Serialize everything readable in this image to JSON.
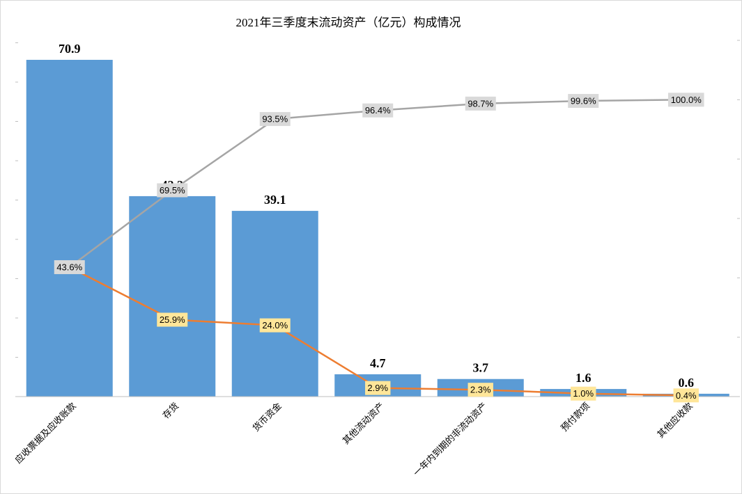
{
  "chart_data": {
    "type": "bar",
    "title": "2021年三季度末流动资产（亿元）构成情况",
    "categories": [
      "应收票据及应收账款",
      "存货",
      "货币资金",
      "其他流动资产",
      "一年内到期的非流动资产",
      "预付款项",
      "其他应收款"
    ],
    "values": [
      70.9,
      42.2,
      39.1,
      4.7,
      3.7,
      1.6,
      0.6
    ],
    "value_labels": [
      "70.9",
      "42.2",
      "39.1",
      "4.7",
      "3.7",
      "1.6",
      "0.6"
    ],
    "series": [
      {
        "type": "line",
        "values": [
          43.6,
          25.9,
          24.0,
          2.9,
          2.3,
          1.0,
          0.4
        ],
        "labels": [
          "43.6%",
          "25.9%",
          "24.0%",
          "2.9%",
          "2.3%",
          "1.0%",
          "0.4%"
        ],
        "color": "#ed7d31"
      },
      {
        "type": "line",
        "values": [
          43.6,
          69.5,
          93.5,
          96.4,
          98.7,
          99.6,
          100.0
        ],
        "labels": [
          "43.6%",
          "69.5%",
          "93.5%",
          "96.4%",
          "98.7%",
          "99.6%",
          "100.0%"
        ],
        "color": "#a5a5a5"
      }
    ],
    "ylim": [
      0,
      75
    ],
    "y2lim": [
      0,
      120
    ],
    "bar_color": "#5b9bd5",
    "grid": false,
    "legend": "none"
  }
}
